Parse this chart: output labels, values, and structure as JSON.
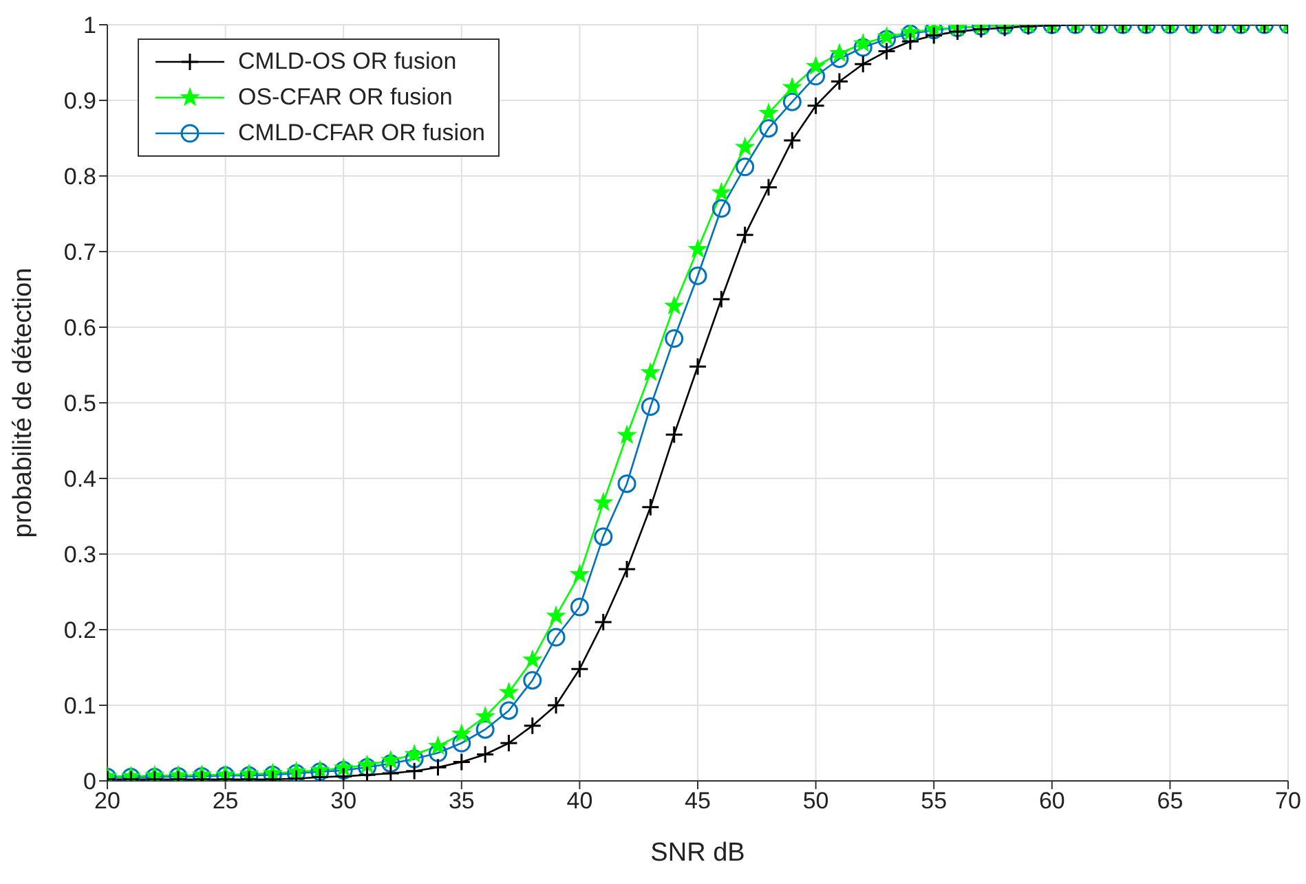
{
  "chart_data": {
    "type": "line",
    "xlabel": "SNR dB",
    "ylabel": "probabilité de détection",
    "x": [
      20,
      21,
      22,
      23,
      24,
      25,
      26,
      27,
      28,
      29,
      30,
      31,
      32,
      33,
      34,
      35,
      36,
      37,
      38,
      39,
      40,
      41,
      42,
      43,
      44,
      45,
      46,
      47,
      48,
      49,
      50,
      51,
      52,
      53,
      54,
      55,
      56,
      57,
      58,
      59,
      60,
      61,
      62,
      63,
      64,
      65,
      66,
      67,
      68,
      69,
      70
    ],
    "series": [
      {
        "name": "CMLD-OS OR fusion",
        "color": "#000000",
        "marker": "cross",
        "values": [
          0.002,
          0.002,
          0.002,
          0.002,
          0.002,
          0.002,
          0.002,
          0.002,
          0.003,
          0.005,
          0.006,
          0.008,
          0.01,
          0.013,
          0.018,
          0.025,
          0.035,
          0.05,
          0.073,
          0.1,
          0.148,
          0.21,
          0.28,
          0.362,
          0.458,
          0.548,
          0.637,
          0.722,
          0.785,
          0.847,
          0.893,
          0.925,
          0.948,
          0.965,
          0.978,
          0.986,
          0.991,
          0.994,
          0.996,
          0.998,
          0.999,
          1,
          1,
          1,
          1,
          1,
          1,
          1,
          1,
          1,
          1
        ]
      },
      {
        "name": "OS-CFAR OR fusion",
        "color": "#00ff00",
        "marker": "star",
        "values": [
          0.006,
          0.006,
          0.007,
          0.007,
          0.008,
          0.008,
          0.009,
          0.01,
          0.012,
          0.014,
          0.017,
          0.021,
          0.027,
          0.035,
          0.046,
          0.062,
          0.085,
          0.117,
          0.16,
          0.218,
          0.273,
          0.368,
          0.457,
          0.54,
          0.628,
          0.703,
          0.778,
          0.838,
          0.883,
          0.917,
          0.945,
          0.962,
          0.975,
          0.984,
          0.99,
          0.994,
          0.996,
          0.998,
          0.999,
          1,
          1,
          1,
          1,
          1,
          1,
          1,
          1,
          1,
          1,
          1,
          1
        ]
      },
      {
        "name": "CMLD-CFAR OR fusion",
        "color": "#0072bd",
        "marker": "circle",
        "values": [
          0.005,
          0.005,
          0.005,
          0.006,
          0.006,
          0.007,
          0.007,
          0.008,
          0.01,
          0.012,
          0.014,
          0.018,
          0.023,
          0.029,
          0.037,
          0.05,
          0.068,
          0.093,
          0.133,
          0.19,
          0.23,
          0.323,
          0.393,
          0.495,
          0.585,
          0.668,
          0.757,
          0.812,
          0.863,
          0.898,
          0.932,
          0.955,
          0.97,
          0.981,
          0.988,
          0.993,
          0.996,
          0.998,
          0.999,
          1,
          1,
          1,
          1,
          1,
          1,
          1,
          1,
          1,
          1,
          1,
          1
        ]
      }
    ],
    "xlim": [
      20,
      70
    ],
    "xticks": [
      20,
      25,
      30,
      35,
      40,
      45,
      50,
      55,
      60,
      65,
      70
    ],
    "ylim": [
      0,
      1
    ],
    "yticks": [
      0,
      0.1,
      0.2,
      0.3,
      0.4,
      0.5,
      0.6,
      0.7,
      0.8,
      0.9,
      1
    ],
    "grid": true,
    "legend": "top left",
    "line_style": "solid"
  }
}
